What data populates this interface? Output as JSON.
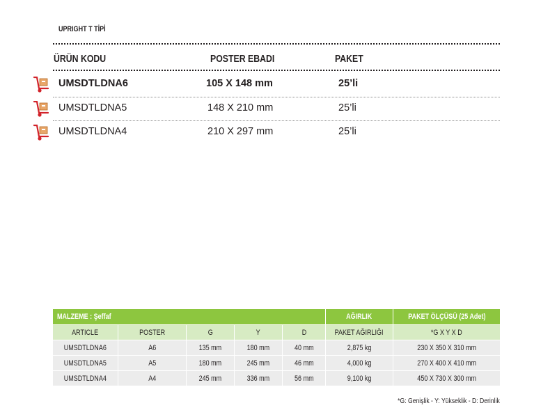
{
  "section_title": "UPRIGHT T TİPİ",
  "headers": {
    "code": "ÜRÜN KODU",
    "poster": "POSTER EBADI",
    "pack": "PAKET"
  },
  "cart_icon": "hand-truck-icon",
  "products": [
    {
      "code": "UMSDTLDNA6",
      "poster": "105 X 148 mm",
      "pack": "25’li"
    },
    {
      "code": "UMSDTLDNA5",
      "poster": "148 X 210 mm",
      "pack": "25’li"
    },
    {
      "code": "UMSDTLDNA4",
      "poster": "210 X 297 mm",
      "pack": "25’li"
    }
  ],
  "spec_table": {
    "group_headers": {
      "material": "MALZEME : Şeffaf",
      "weight": "AĞIRLIK",
      "pack_size": "PAKET ÖLÇÜSÜ (25 Adet)"
    },
    "columns": [
      "ARTICLE",
      "POSTER",
      "G",
      "Y",
      "D",
      "PAKET AĞIRLIĞI",
      "*G X Y X D"
    ],
    "rows": [
      [
        "UMSDTLDNA6",
        "A6",
        "135 mm",
        "180 mm",
        "40 mm",
        "2,875 kg",
        "230 X 350 X 310 mm"
      ],
      [
        "UMSDTLDNA5",
        "A5",
        "180 mm",
        "245 mm",
        "46 mm",
        "4,000 kg",
        "270 X 400 X 410 mm"
      ],
      [
        "UMSDTLDNA4",
        "A4",
        "245 mm",
        "336 mm",
        "56 mm",
        "9,100 kg",
        "450 X 730 X 300 mm"
      ]
    ]
  },
  "footnote": "*G: Genişlik  - Y: Yükseklik  -  D: Derinlik",
  "colors": {
    "accent_green": "#8dc63f",
    "light_green": "#d7ebc3",
    "row_gray": "#ececec",
    "icon_red": "#d2232a",
    "icon_tan": "#e8a76a"
  }
}
